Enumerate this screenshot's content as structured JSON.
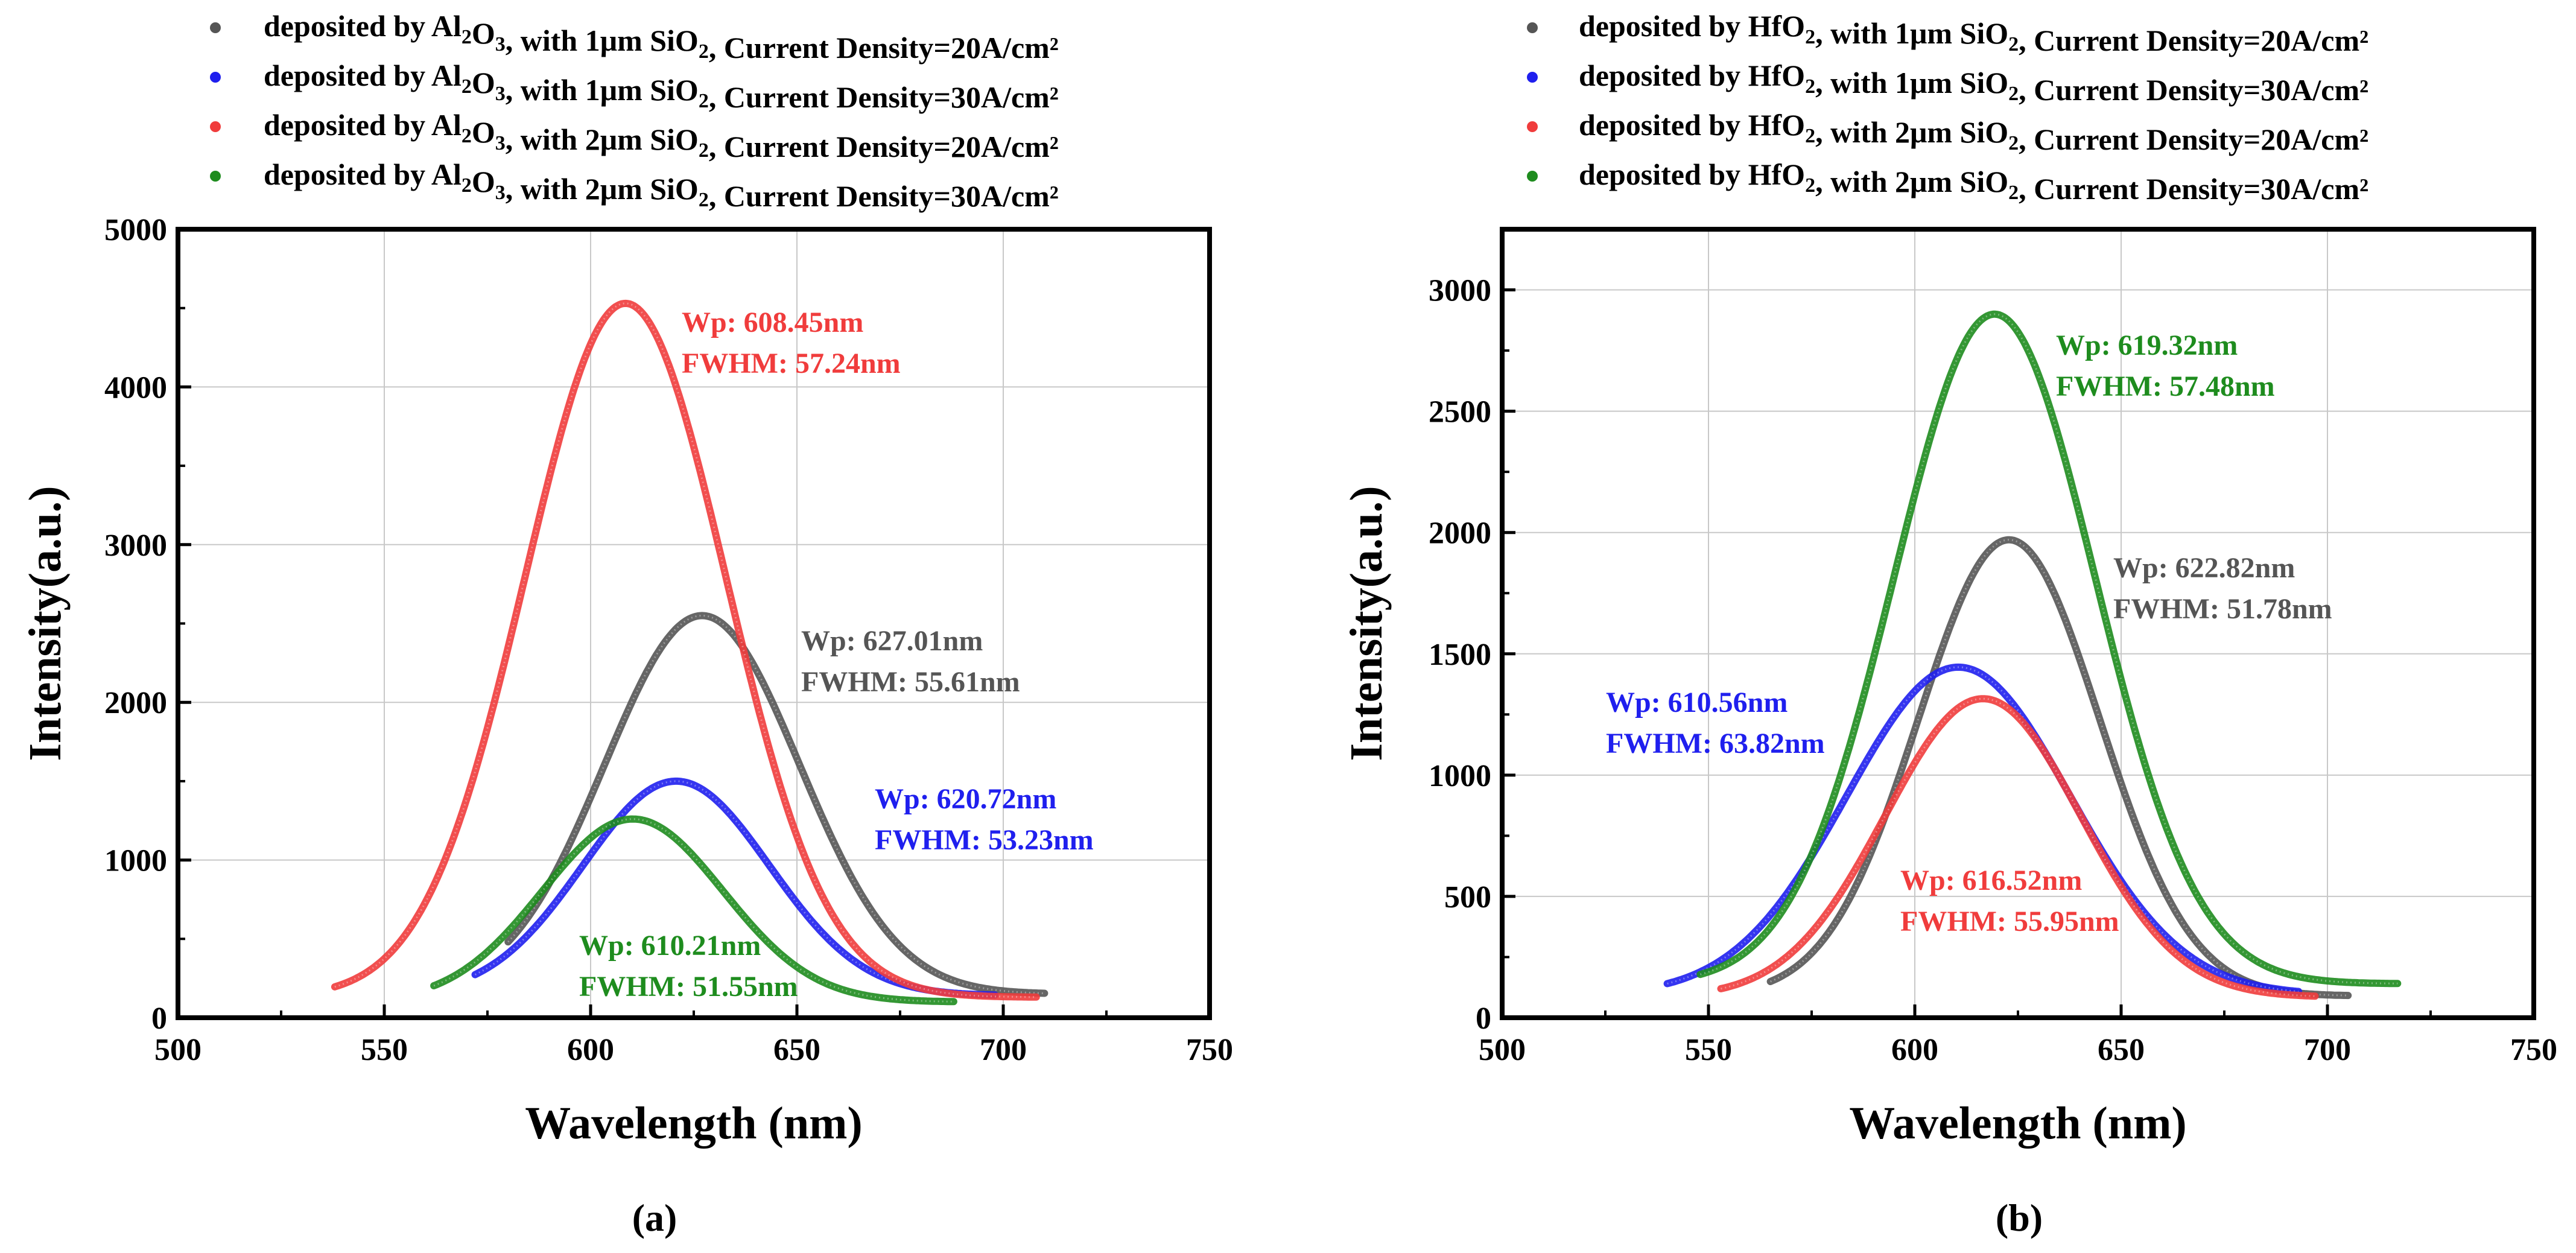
{
  "chart_data": [
    {
      "type": "line",
      "panel_label": "(a)",
      "xlabel": "Wavelength (nm)",
      "ylabel": "Intensity(a.u.)",
      "xlim": [
        500,
        750
      ],
      "ylim": [
        0,
        5000
      ],
      "xticks": [
        500,
        550,
        600,
        650,
        700,
        750
      ],
      "yticks": [
        0,
        1000,
        2000,
        3000,
        4000,
        5000
      ],
      "xtick_labels": [
        "500",
        "550",
        "600",
        "650",
        "700",
        "750"
      ],
      "ytick_labels": [
        "0",
        "1000",
        "2000",
        "3000",
        "4000",
        "5000"
      ],
      "grid": true,
      "legend_position": "top",
      "series": [
        {
          "name": "deposited by Al₂O₃, with 1μm SiO₂, Current Density=20A/cm²",
          "legend": {
            "pre": "deposited by Al",
            "s1": "2",
            "mid": "O",
            "s2": "3",
            "post": ", with 1μm SiO",
            "s3": "2",
            "tail": ", Current Density=20A/cm²"
          },
          "color": "#555555",
          "range": [
            580,
            710
          ],
          "peak": 627.01,
          "fwhm": 55.61,
          "amp": 2400,
          "base": 150,
          "annotation": [
            "Wp: 627.01nm",
            "FWHM: 55.61nm"
          ]
        },
        {
          "name": "deposited by Al₂O₃, with 1μm SiO₂, Current Density=30A/cm²",
          "legend": {
            "pre": "deposited by Al",
            "s1": "2",
            "mid": "O",
            "s2": "3",
            "post": ", with 1μm SiO",
            "s3": "2",
            "tail": ", Current Density=30A/cm²"
          },
          "color": "#1f1fee",
          "range": [
            572,
            698
          ],
          "peak": 620.72,
          "fwhm": 53.23,
          "amp": 1360,
          "base": 140,
          "annotation": [
            "Wp: 620.72nm",
            "FWHM: 53.23nm"
          ]
        },
        {
          "name": "deposited by Al₂O₃, with 2μm SiO₂, Current Density=20A/cm²",
          "legend": {
            "pre": "deposited by Al",
            "s1": "2",
            "mid": "O",
            "s2": "3",
            "post": ", with 2μm SiO",
            "s3": "2",
            "tail": ", Current Density=20A/cm²"
          },
          "color": "#f03c3c",
          "range": [
            538,
            708
          ],
          "peak": 608.45,
          "fwhm": 57.24,
          "amp": 4400,
          "base": 130,
          "annotation": [
            "Wp: 608.45nm",
            "FWHM: 57.24nm"
          ]
        },
        {
          "name": "deposited by Al₂O₃, with 2μm SiO₂, Current Density=30A/cm²",
          "legend": {
            "pre": "deposited by Al",
            "s1": "2",
            "mid": "O",
            "s2": "3",
            "post": ", with 2μm SiO",
            "s3": "2",
            "tail": ", Current Density=30A/cm²"
          },
          "color": "#1e8c1e",
          "range": [
            562,
            688
          ],
          "peak": 610.21,
          "fwhm": 51.55,
          "amp": 1160,
          "base": 100,
          "annotation": [
            "Wp: 610.21nm",
            "FWHM: 51.55nm"
          ]
        }
      ]
    },
    {
      "type": "line",
      "panel_label": "(b)",
      "xlabel": "Wavelength (nm)",
      "ylabel": "Intensity(a.u.)",
      "xlim": [
        500,
        750
      ],
      "ylim": [
        0,
        3250
      ],
      "xticks": [
        500,
        550,
        600,
        650,
        700,
        750
      ],
      "yticks": [
        0,
        500,
        1000,
        1500,
        2000,
        2500,
        3000
      ],
      "xtick_labels": [
        "500",
        "550",
        "600",
        "650",
        "700",
        "750"
      ],
      "ytick_labels": [
        "0",
        "500",
        "1000",
        "1500",
        "2000",
        "2500",
        "3000"
      ],
      "grid": true,
      "legend_position": "top",
      "series": [
        {
          "name": "deposited by HfO₂, with 1μm SiO₂, Current Density=20A/cm²",
          "legend": {
            "pre": "deposited by HfO",
            "s1": "2",
            "mid": "",
            "s2": "",
            "post": ", with 1μm SiO",
            "s3": "2",
            "tail": ", Current Density=20A/cm²"
          },
          "color": "#555555",
          "range": [
            565,
            705
          ],
          "peak": 622.82,
          "fwhm": 51.78,
          "amp": 1880,
          "base": 90,
          "annotation": [
            "Wp: 622.82nm",
            "FWHM: 51.78nm"
          ]
        },
        {
          "name": "deposited by HfO₂, with 1μm SiO₂, Current Density=30A/cm²",
          "legend": {
            "pre": "deposited by HfO",
            "s1": "2",
            "mid": "",
            "s2": "",
            "post": ", with 1μm SiO",
            "s3": "2",
            "tail": ", Current Density=30A/cm²"
          },
          "color": "#1f1fee",
          "range": [
            540,
            693
          ],
          "peak": 610.56,
          "fwhm": 63.82,
          "amp": 1350,
          "base": 95,
          "annotation": [
            "Wp: 610.56nm",
            "FWHM: 63.82nm"
          ]
        },
        {
          "name": "deposited by HfO₂, with 2μm SiO₂, Current Density=20A/cm²",
          "legend": {
            "pre": "deposited by HfO",
            "s1": "2",
            "mid": "",
            "s2": "",
            "post": ", with 2μm SiO",
            "s3": "2",
            "tail": ", Current Density=20A/cm²"
          },
          "color": "#f03c3c",
          "range": [
            553,
            697
          ],
          "peak": 616.52,
          "fwhm": 55.95,
          "amp": 1230,
          "base": 85,
          "annotation": [
            "Wp: 616.52nm",
            "FWHM: 55.95nm"
          ]
        },
        {
          "name": "deposited by HfO₂, with 2μm SiO₂, Current Density=30A/cm²",
          "legend": {
            "pre": "deposited by HfO",
            "s1": "2",
            "mid": "",
            "s2": "",
            "post": ", with 2μm SiO",
            "s3": "2",
            "tail": ", Current Density=30A/cm²"
          },
          "color": "#1e8c1e",
          "range": [
            548,
            717
          ],
          "peak": 619.32,
          "fwhm": 57.48,
          "amp": 2760,
          "base": 140,
          "annotation": [
            "Wp: 619.32nm",
            "FWHM: 57.48nm"
          ]
        }
      ]
    }
  ]
}
